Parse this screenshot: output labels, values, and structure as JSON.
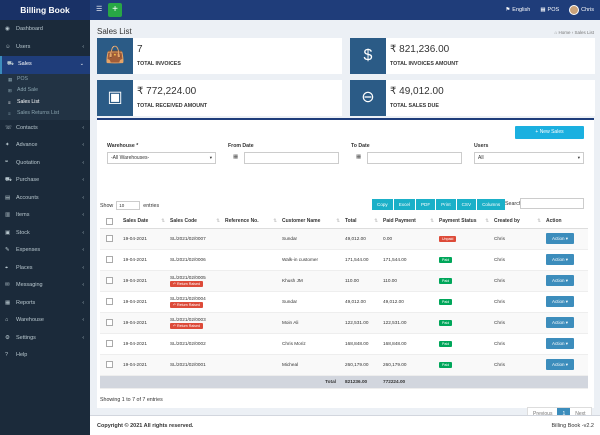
{
  "app": {
    "title": "Billing Book"
  },
  "topbar": {
    "menu_icon": "hamburger-icon",
    "add_label": "+",
    "lang": "English",
    "pos": "POS",
    "user": "Chris"
  },
  "sidebar": {
    "items": [
      {
        "label": "Dashboard",
        "icon": "dashboard-icon",
        "chev": ""
      },
      {
        "label": "Users",
        "icon": "users-icon",
        "chev": "‹"
      },
      {
        "label": "Sales",
        "icon": "cart-icon",
        "chev": "⌄"
      }
    ],
    "sales_sub": [
      {
        "label": "POS"
      },
      {
        "label": "Add Sale"
      },
      {
        "label": "Sales List"
      },
      {
        "label": "Sales Returns List"
      }
    ],
    "items2": [
      {
        "label": "Contacts",
        "icon": "contacts-icon",
        "chev": "‹"
      },
      {
        "label": "Advance",
        "icon": "advance-icon",
        "chev": "‹"
      },
      {
        "label": "Quotation",
        "icon": "quotation-icon",
        "chev": "‹"
      },
      {
        "label": "Purchase",
        "icon": "purchase-icon",
        "chev": "‹"
      },
      {
        "label": "Accounts",
        "icon": "accounts-icon",
        "chev": "‹"
      },
      {
        "label": "Items",
        "icon": "items-icon",
        "chev": "‹"
      },
      {
        "label": "Stock",
        "icon": "stock-icon",
        "chev": "‹"
      },
      {
        "label": "Expenses",
        "icon": "expenses-icon",
        "chev": "‹"
      },
      {
        "label": "Places",
        "icon": "places-icon",
        "chev": "‹"
      },
      {
        "label": "Messaging",
        "icon": "messaging-icon",
        "chev": "‹"
      },
      {
        "label": "Reports",
        "icon": "reports-icon",
        "chev": "‹"
      },
      {
        "label": "Warehouse",
        "icon": "warehouse-icon",
        "chev": "‹"
      },
      {
        "label": "Settings",
        "icon": "settings-icon",
        "chev": "‹"
      },
      {
        "label": "Help",
        "icon": "help-icon",
        "chev": ""
      }
    ]
  },
  "page": {
    "title": "Sales List",
    "breadcrumb_home": "Home",
    "breadcrumb_current": "Sales List"
  },
  "stats": [
    {
      "value": "7",
      "label": "TOTAL INVOICES",
      "icon": "bag-icon"
    },
    {
      "value": "₹ 821,236.00",
      "label": "TOTAL INVOICES AMOUNT",
      "icon": "dollar-icon"
    },
    {
      "value": "₹ 772,224.00",
      "label": "TOTAL RECEIVED AMOUNT",
      "icon": "cash-icon"
    },
    {
      "value": "₹ 49,012.00",
      "label": "TOTAL SALES DUE",
      "icon": "minus-icon"
    }
  ],
  "filters": {
    "new_sales": "+ New Sales",
    "warehouse_label": "Warehouse *",
    "warehouse_value": "-All Warehouses-",
    "from_label": "From Date",
    "to_label": "To Date",
    "users_label": "Users",
    "users_value": "All"
  },
  "table_tools": {
    "show": "Show",
    "entries_value": "10",
    "entries": "entries",
    "buttons": [
      "Copy",
      "Excel",
      "PDF",
      "Print",
      "CSV",
      "Columns"
    ],
    "search": "Search:"
  },
  "table": {
    "headers": [
      "",
      "Sales Date",
      "Sales Code",
      "Reference No.",
      "Customer Name",
      "Total",
      "Paid Payment",
      "Payment Status",
      "Created by",
      "Action"
    ],
    "rows": [
      {
        "date": "19-04-2021",
        "code": "SL/2021/02/0007",
        "returned": "",
        "ref": "",
        "customer": "Sundar",
        "total": "49,012.00",
        "paid": "0.00",
        "status": "Unpaid",
        "status_type": "unpaid",
        "by": "Chris",
        "action": "Action ▾"
      },
      {
        "date": "19-04-2021",
        "code": "SL/2021/02/0006",
        "returned": "",
        "ref": "",
        "customer": "Walk-in customer",
        "total": "171,544.00",
        "paid": "171,544.00",
        "status": "Paid",
        "status_type": "paid",
        "by": "Chris",
        "action": "Action ▾"
      },
      {
        "date": "19-04-2021",
        "code": "SL/2021/02/0005",
        "returned": "↶ Return Raised",
        "ref": "",
        "customer": "Khush JM",
        "total": "110.00",
        "paid": "110.00",
        "status": "Paid",
        "status_type": "paid",
        "by": "Chris",
        "action": "Action ▾"
      },
      {
        "date": "19-04-2021",
        "code": "SL/2021/02/0004",
        "returned": "↶ Return Raised",
        "ref": "",
        "customer": "Sundar",
        "total": "49,012.00",
        "paid": "49,012.00",
        "status": "Paid",
        "status_type": "paid",
        "by": "Chris",
        "action": "Action ▾"
      },
      {
        "date": "19-04-2021",
        "code": "SL/2021/02/0003",
        "returned": "↶ Return Raised",
        "ref": "",
        "customer": "Moin Ali",
        "total": "122,531.00",
        "paid": "122,531.00",
        "status": "Paid",
        "status_type": "paid",
        "by": "Chris",
        "action": "Action ▾"
      },
      {
        "date": "19-04-2021",
        "code": "SL/2021/02/0002",
        "returned": "",
        "ref": "",
        "customer": "Chris Moriz",
        "total": "168,848.00",
        "paid": "168,848.00",
        "status": "Paid",
        "status_type": "paid",
        "by": "Chris",
        "action": "Action ▾"
      },
      {
        "date": "19-04-2021",
        "code": "SL/2021/02/0001",
        "returned": "",
        "ref": "",
        "customer": "Micheal",
        "total": "260,179.00",
        "paid": "260,179.00",
        "status": "Paid",
        "status_type": "paid",
        "by": "Chris",
        "action": "Action ▾"
      }
    ],
    "footer_label": "Total",
    "footer_total": "821236.00",
    "footer_paid": "772224.00"
  },
  "showing": "Showing 1 to 7 of 7 entries",
  "pager": {
    "prev": "Previous",
    "current": "1",
    "next": "Next"
  },
  "footer": {
    "copyright": "Copyright © 2021 All rights reserved.",
    "version": "Billing Book -v2.2"
  },
  "colors": {
    "brand": "#1f3d7a",
    "sidebar": "#1b2a3a",
    "stat_icon": "#2b5b86",
    "new_sales": "#1bb0e0",
    "action": "#3c8dbc",
    "paid": "#00a65a",
    "unpaid": "#dd4b39"
  }
}
